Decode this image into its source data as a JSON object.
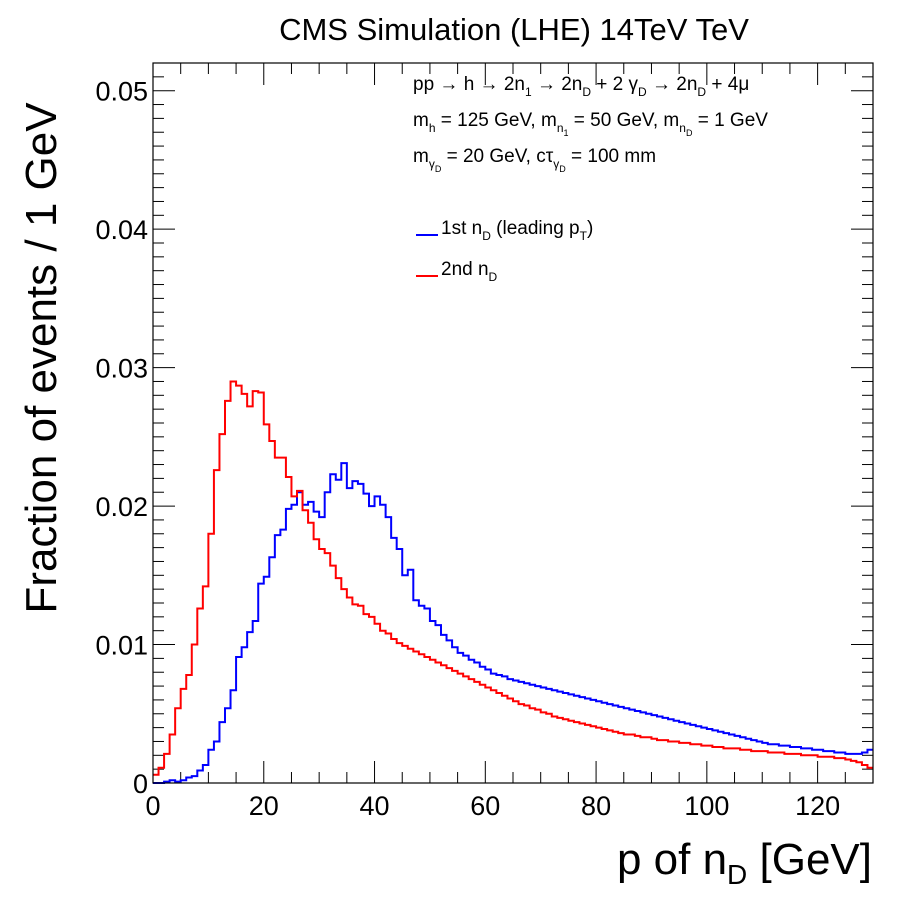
{
  "chart_data": {
    "type": "line",
    "title": "CMS Simulation (LHE) 14TeV TeV",
    "xlabel": {
      "main": "p of n",
      "sub": "D",
      "tail": " [GeV]"
    },
    "ylabel": "Fraction of events / 1 GeV",
    "xlim": [
      0,
      130
    ],
    "ylim": [
      0,
      0.052
    ],
    "x_ticks": [
      "0",
      "20",
      "40",
      "60",
      "80",
      "100",
      "120"
    ],
    "y_ticks": [
      "0",
      "0.01",
      "0.02",
      "0.03",
      "0.04",
      "0.05"
    ],
    "bin_width": 1,
    "grid": false,
    "annotations": [
      [
        {
          "t": "pp "
        },
        {
          "t": "→",
          "sym": true
        },
        {
          "t": " h "
        },
        {
          "t": "→",
          "sym": true
        },
        {
          "t": " 2n"
        },
        {
          "t": "1",
          "s": "sub"
        },
        {
          "t": " "
        },
        {
          "t": "→",
          "sym": true
        },
        {
          "t": " 2n"
        },
        {
          "t": "D",
          "s": "sub"
        },
        {
          "t": " + 2 "
        },
        {
          "t": "γ",
          "sym": true
        },
        {
          "t": "D",
          "s": "sub"
        },
        {
          "t": " "
        },
        {
          "t": "→",
          "sym": true
        },
        {
          "t": " 2n"
        },
        {
          "t": "D",
          "s": "sub"
        },
        {
          "t": " + 4"
        },
        {
          "t": "μ",
          "sym": true
        }
      ],
      [
        {
          "t": "m"
        },
        {
          "t": "h",
          "s": "sub"
        },
        {
          "t": " = 125 GeV, m"
        },
        {
          "t": "n",
          "s": "sub"
        },
        {
          "t": "1",
          "s": "sub2"
        },
        {
          "t": " = 50 GeV, m"
        },
        {
          "t": "n",
          "s": "sub"
        },
        {
          "t": "D",
          "s": "sub2"
        },
        {
          "t": " = 1 GeV"
        }
      ],
      [
        {
          "t": "m"
        },
        {
          "t": "γ",
          "s": "sub"
        },
        {
          "t": "D",
          "s": "sub2"
        },
        {
          "t": " = 20 GeV, c"
        },
        {
          "t": "τ",
          "sym": true
        },
        {
          "t": "γ",
          "s": "sub"
        },
        {
          "t": "D",
          "s": "sub2"
        },
        {
          "t": " = 100 mm"
        }
      ]
    ],
    "series": [
      {
        "label": [
          {
            "t": "1st n"
          },
          {
            "t": "D",
            "s": "sub"
          },
          {
            "t": " (leading p"
          },
          {
            "t": "T",
            "s": "sub"
          },
          {
            "t": ")"
          }
        ],
        "color": "#0000ff",
        "values": [
          0.0,
          0.0,
          0.0001,
          0.0002,
          0.0001,
          0.0002,
          0.0004,
          0.0005,
          0.0009,
          0.0013,
          0.0024,
          0.003,
          0.0044,
          0.0054,
          0.0067,
          0.0091,
          0.0098,
          0.0109,
          0.0117,
          0.0144,
          0.0149,
          0.0163,
          0.0179,
          0.0183,
          0.0198,
          0.0201,
          0.021,
          0.0201,
          0.0203,
          0.0196,
          0.0192,
          0.021,
          0.0223,
          0.0219,
          0.0231,
          0.0213,
          0.0218,
          0.0216,
          0.0209,
          0.02,
          0.0207,
          0.0201,
          0.0192,
          0.0177,
          0.0169,
          0.015,
          0.0154,
          0.0132,
          0.0128,
          0.0126,
          0.0117,
          0.0114,
          0.0107,
          0.0103,
          0.0098,
          0.0094,
          0.0092,
          0.0089,
          0.0087,
          0.0084,
          0.0082,
          0.0079,
          0.0078,
          0.0077,
          0.0075,
          0.0074,
          0.0073,
          0.0072,
          0.0071,
          0.007,
          0.0069,
          0.0068,
          0.0067,
          0.0066,
          0.0065,
          0.0064,
          0.0063,
          0.0062,
          0.0061,
          0.006,
          0.0059,
          0.0058,
          0.0057,
          0.0056,
          0.0055,
          0.0054,
          0.0053,
          0.0052,
          0.0051,
          0.005,
          0.0049,
          0.0048,
          0.0047,
          0.0046,
          0.0045,
          0.0044,
          0.0043,
          0.0042,
          0.0041,
          0.004,
          0.0039,
          0.0038,
          0.0037,
          0.0036,
          0.0035,
          0.0034,
          0.0033,
          0.0032,
          0.0031,
          0.003,
          0.0029,
          0.0028,
          0.0028,
          0.0027,
          0.0027,
          0.0026,
          0.0026,
          0.0025,
          0.0025,
          0.0024,
          0.0024,
          0.0023,
          0.0023,
          0.0022,
          0.0022,
          0.0021,
          0.0021,
          0.0021,
          0.0022,
          0.0024
        ]
      },
      {
        "label": [
          {
            "t": "2nd n"
          },
          {
            "t": "D",
            "s": "sub"
          }
        ],
        "color": "#ff0000",
        "values": [
          0.0006,
          0.0011,
          0.0021,
          0.0035,
          0.0054,
          0.0068,
          0.0078,
          0.01,
          0.0126,
          0.0142,
          0.018,
          0.0226,
          0.0252,
          0.0276,
          0.029,
          0.0287,
          0.0281,
          0.0272,
          0.0283,
          0.0282,
          0.0259,
          0.0247,
          0.0235,
          0.0235,
          0.0221,
          0.0207,
          0.0211,
          0.0197,
          0.0188,
          0.0176,
          0.0169,
          0.0166,
          0.0157,
          0.0148,
          0.014,
          0.0134,
          0.0129,
          0.0128,
          0.0122,
          0.012,
          0.0115,
          0.011,
          0.0108,
          0.0104,
          0.0101,
          0.0099,
          0.0097,
          0.0095,
          0.0093,
          0.0091,
          0.0089,
          0.0087,
          0.0085,
          0.0083,
          0.0081,
          0.0079,
          0.0077,
          0.0075,
          0.0073,
          0.0071,
          0.0069,
          0.0067,
          0.0065,
          0.0063,
          0.0061,
          0.0059,
          0.0057,
          0.0056,
          0.0054,
          0.0053,
          0.0051,
          0.005,
          0.0048,
          0.0047,
          0.0046,
          0.0045,
          0.0044,
          0.0043,
          0.0042,
          0.0041,
          0.004,
          0.0039,
          0.0038,
          0.0037,
          0.0036,
          0.0035,
          0.0035,
          0.0034,
          0.0033,
          0.0033,
          0.0032,
          0.0031,
          0.0031,
          0.003,
          0.003,
          0.0029,
          0.0029,
          0.0028,
          0.0028,
          0.0027,
          0.0027,
          0.0026,
          0.0026,
          0.0025,
          0.0025,
          0.0025,
          0.0024,
          0.0024,
          0.0023,
          0.0023,
          0.0023,
          0.0022,
          0.0022,
          0.0022,
          0.0021,
          0.0021,
          0.0021,
          0.002,
          0.002,
          0.002,
          0.0019,
          0.0019,
          0.0019,
          0.0018,
          0.0018,
          0.0017,
          0.0016,
          0.0015,
          0.0013,
          0.0011
        ]
      }
    ]
  }
}
